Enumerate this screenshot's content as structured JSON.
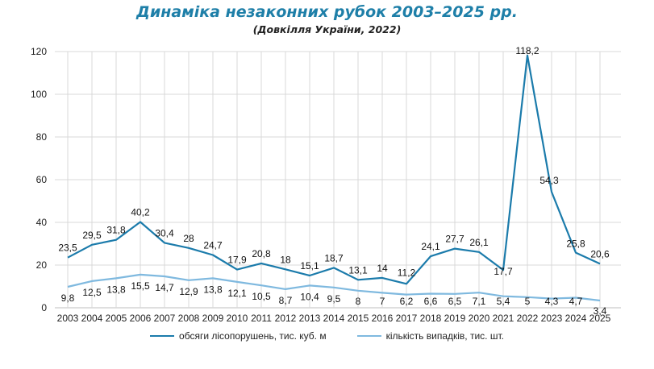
{
  "colors": {
    "title": "#1e7fa8",
    "series1": "#1b7bab",
    "series2": "#7fb9df",
    "grid": "#d9d9d9"
  },
  "chart_data": {
    "type": "line",
    "title": "Динаміка незаконних рубок 2003–2025 рр.",
    "subtitle": "(Довкілля України, 2022)",
    "categories": [
      "2003",
      "2004",
      "2005",
      "2006",
      "2007",
      "2008",
      "2009",
      "2010",
      "2011",
      "2012",
      "2013",
      "2014",
      "2015",
      "2016",
      "2017",
      "2018",
      "2019",
      "2020",
      "2021",
      "2022",
      "2023",
      "2024",
      "2025"
    ],
    "series": [
      {
        "name": "обсяги лісопорушень, тис. куб. м",
        "values": [
          23.5,
          29.5,
          31.8,
          40.2,
          30.4,
          28,
          24.7,
          17.9,
          20.8,
          18,
          15.1,
          18.7,
          13.1,
          14,
          11.2,
          24.1,
          27.7,
          26.1,
          17.7,
          118.2,
          54.3,
          25.8,
          20.6
        ],
        "labels": [
          "23,5",
          "29,5",
          "31,8",
          "40,2",
          "30,4",
          "28",
          "24,7",
          "17,9",
          "20,8",
          "18",
          "15,1",
          "18,7",
          "13,1",
          "14",
          "11,2",
          "24,1",
          "27,7",
          "26,1",
          "17,7",
          "118,2",
          "54,3",
          "25,8",
          "20,6"
        ]
      },
      {
        "name": "кількість випадків, тис. шт.",
        "values": [
          9.8,
          12.5,
          13.8,
          15.5,
          14.7,
          12.9,
          13.8,
          12.1,
          10.5,
          8.7,
          10.4,
          9.5,
          8,
          7,
          6.2,
          6.6,
          6.5,
          7.1,
          5.4,
          5,
          4.3,
          4.7,
          3.4
        ],
        "labels": [
          "9,8",
          "12,5",
          "13,8",
          "15,5",
          "14,7",
          "12,9",
          "13,8",
          "12,1",
          "10,5",
          "8,7",
          "10,4",
          "9,5",
          "8",
          "7",
          "6,2",
          "6,6",
          "6,5",
          "7,1",
          "5,4",
          "5",
          "4,3",
          "4,7",
          "3,4"
        ]
      }
    ],
    "yticks": [
      0,
      20,
      40,
      60,
      80,
      100,
      120
    ],
    "ylim": [
      0,
      120
    ],
    "grid": true,
    "legend": "bottom"
  }
}
